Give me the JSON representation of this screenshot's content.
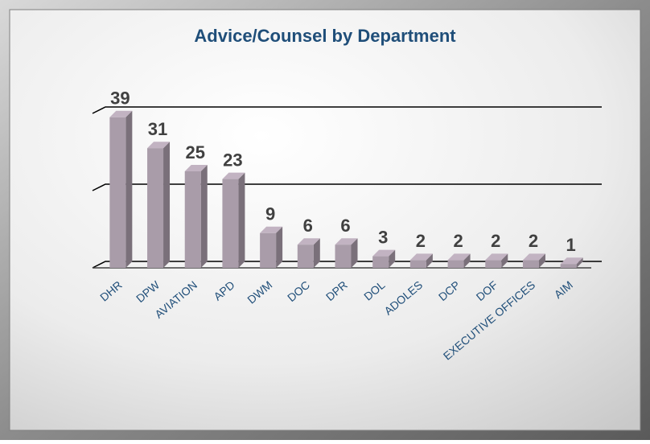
{
  "chart_data": {
    "type": "bar3d",
    "title": "Advice/Counsel by Department",
    "categories": [
      "DHR",
      "DPW",
      "AVIATION",
      "APD",
      "DWM",
      "DOC",
      "DPR",
      "DOL",
      "ADOLES",
      "DCP",
      "DOF",
      "EXECUTIVE OFFICES",
      "AIM"
    ],
    "values": [
      39,
      31,
      25,
      23,
      9,
      6,
      6,
      3,
      2,
      2,
      2,
      2,
      1
    ],
    "color": "#a99ca9",
    "ylim": [
      0,
      40
    ],
    "yticks": [
      0,
      20,
      40
    ],
    "grid": true
  }
}
